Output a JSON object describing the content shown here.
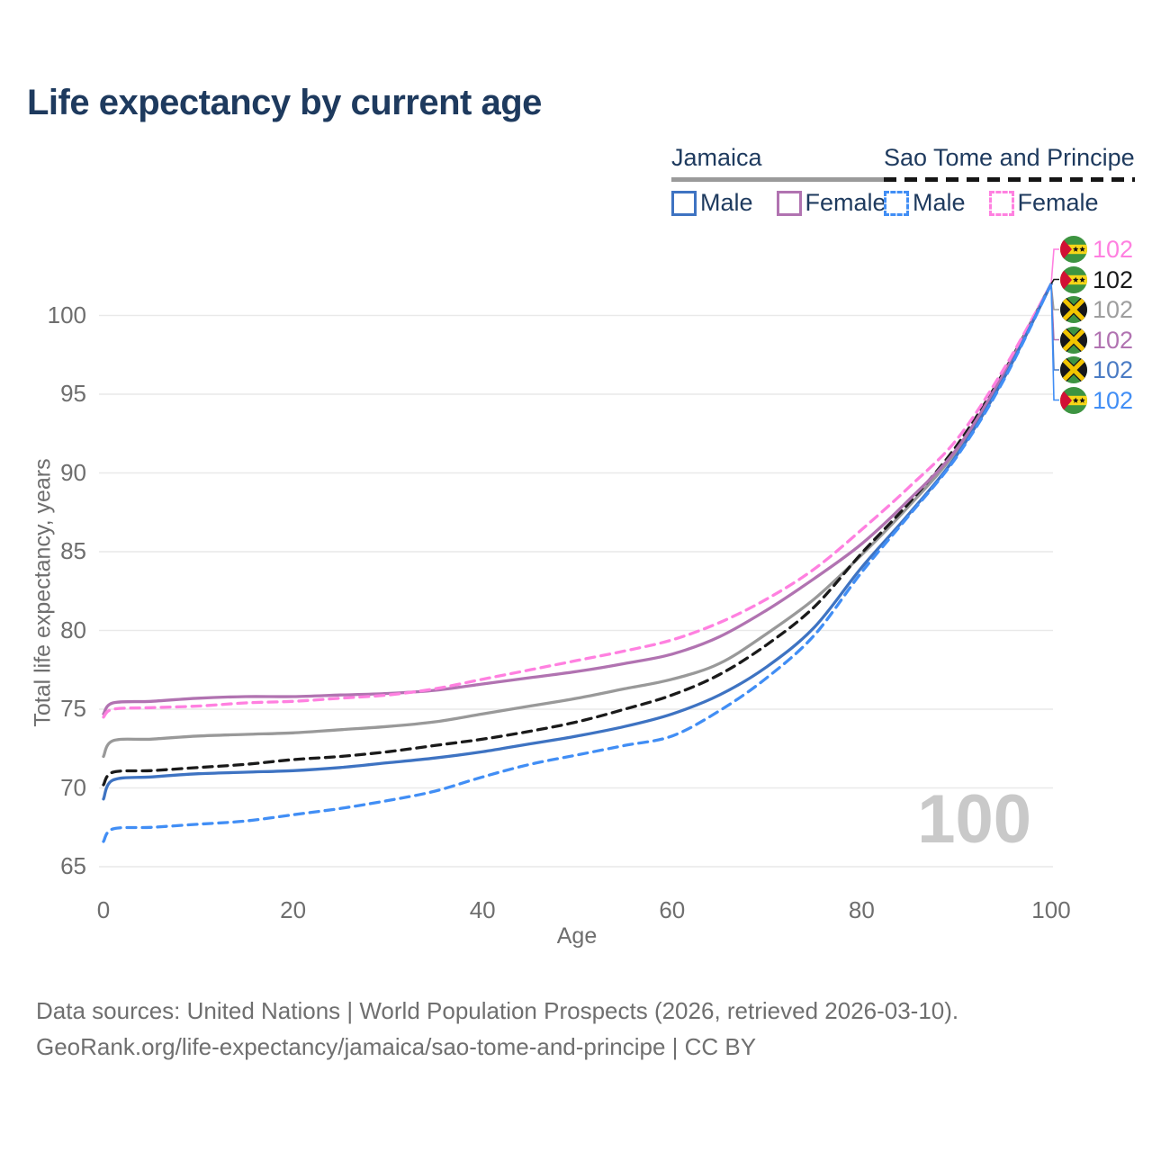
{
  "title": "Life expectancy by current age",
  "legend": {
    "position": "top-right",
    "groups": [
      {
        "name": "Jamaica",
        "line_style": "solid",
        "underline_color": "#9a9a9a",
        "items": [
          {
            "label": "Male",
            "color": "#3e73c2",
            "dashed": false
          },
          {
            "label": "Female",
            "color": "#b173b1",
            "dashed": false
          }
        ]
      },
      {
        "name": "Sao Tome and Principe",
        "line_style": "dashed",
        "underline_color": "#151515",
        "items": [
          {
            "label": "Male",
            "color": "#418ef5",
            "dashed": true
          },
          {
            "label": "Female",
            "color": "#ff80e0",
            "dashed": true
          }
        ]
      }
    ]
  },
  "chart_data": {
    "type": "line",
    "title": "Life expectancy by current age",
    "xlabel": "Age",
    "ylabel": "Total life expectancy, years",
    "xlim": [
      0,
      100
    ],
    "ylim": [
      65,
      103
    ],
    "x_ticks": [
      0,
      20,
      40,
      60,
      80,
      100
    ],
    "y_ticks": [
      65,
      70,
      75,
      80,
      85,
      90,
      95,
      100
    ],
    "grid": "horizontal",
    "grid_color": "#e9e9e9",
    "x": [
      0,
      1,
      5,
      10,
      15,
      20,
      25,
      30,
      35,
      40,
      45,
      50,
      55,
      60,
      65,
      70,
      75,
      80,
      85,
      90,
      95,
      100
    ],
    "series": [
      {
        "name": "Jamaica Total",
        "country": "Jamaica",
        "sex": "both",
        "color": "#999999",
        "dashed": false,
        "values": [
          72.0,
          73.0,
          73.1,
          73.3,
          73.4,
          73.5,
          73.7,
          73.9,
          74.2,
          74.7,
          75.2,
          75.7,
          76.3,
          76.9,
          77.9,
          79.8,
          82.0,
          84.8,
          87.9,
          91.4,
          96.2,
          102
        ]
      },
      {
        "name": "Sao Tome and Principe Total",
        "country": "Sao Tome and Principe",
        "sex": "both",
        "color": "#1a1a1a",
        "dashed": true,
        "values": [
          70.2,
          71.0,
          71.1,
          71.3,
          71.5,
          71.8,
          72.0,
          72.3,
          72.7,
          73.1,
          73.6,
          74.2,
          75.0,
          75.9,
          77.2,
          79.1,
          81.5,
          84.9,
          88.1,
          91.7,
          96.4,
          102
        ]
      },
      {
        "name": "Jamaica Female",
        "country": "Jamaica",
        "sex": "female",
        "color": "#b173b1",
        "dashed": false,
        "values": [
          74.7,
          75.4,
          75.5,
          75.7,
          75.8,
          75.8,
          75.9,
          76.0,
          76.2,
          76.6,
          77.0,
          77.4,
          77.9,
          78.5,
          79.6,
          81.3,
          83.3,
          85.5,
          88.3,
          91.5,
          96.3,
          102
        ]
      },
      {
        "name": "Sao Tome and Principe Female",
        "country": "Sao Tome and Principe",
        "sex": "female",
        "color": "#ff80e0",
        "dashed": true,
        "values": [
          74.5,
          75.0,
          75.1,
          75.2,
          75.4,
          75.5,
          75.7,
          75.9,
          76.3,
          76.9,
          77.5,
          78.1,
          78.7,
          79.4,
          80.5,
          82.0,
          83.9,
          86.4,
          89.1,
          92.1,
          96.6,
          102
        ]
      },
      {
        "name": "Jamaica Male",
        "country": "Jamaica",
        "sex": "male",
        "color": "#3e73c2",
        "dashed": false,
        "values": [
          69.3,
          70.5,
          70.7,
          70.9,
          71.0,
          71.1,
          71.3,
          71.6,
          71.9,
          72.3,
          72.8,
          73.3,
          73.9,
          74.7,
          75.9,
          77.7,
          80.2,
          84.0,
          87.4,
          91.1,
          96.0,
          102
        ]
      },
      {
        "name": "Sao Tome and Principe Male",
        "country": "Sao Tome and Principe",
        "sex": "male",
        "color": "#418ef5",
        "dashed": true,
        "values": [
          66.6,
          67.4,
          67.5,
          67.7,
          67.9,
          68.3,
          68.7,
          69.2,
          69.8,
          70.7,
          71.5,
          72.1,
          72.7,
          73.3,
          74.9,
          77.0,
          79.7,
          83.7,
          87.3,
          91.0,
          95.9,
          102
        ]
      }
    ]
  },
  "end_labels": [
    {
      "series": "stp-female",
      "flag": "sao_tome",
      "value": "102",
      "color": "#ff80e0"
    },
    {
      "series": "stp-total",
      "flag": "sao_tome",
      "value": "102",
      "color": "#1a1a1a"
    },
    {
      "series": "jamaica-total",
      "flag": "jamaica",
      "value": "102",
      "color": "#9e9e9e"
    },
    {
      "series": "jamaica-female",
      "flag": "jamaica",
      "value": "102",
      "color": "#b173b1"
    },
    {
      "series": "jamaica-male",
      "flag": "jamaica",
      "value": "102",
      "color": "#4a7bc4"
    },
    {
      "series": "stp-male",
      "flag": "sao_tome",
      "value": "102",
      "color": "#418ef5"
    }
  ],
  "annotations": {
    "watermark": "100"
  },
  "footer": {
    "line1": "Data sources: United Nations | World Population Prospects (2026, retrieved 2026-03-10).",
    "line2": "GeoRank.org/life-expectancy/jamaica/sao-tome-and-principe | CC BY"
  }
}
